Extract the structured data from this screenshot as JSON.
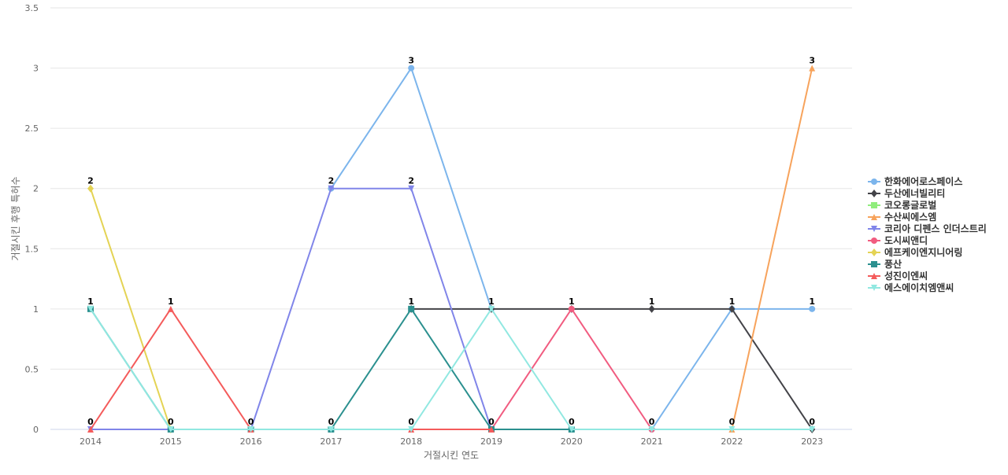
{
  "chart_data": {
    "type": "line",
    "title": "",
    "xlabel": "거절시킨 연도",
    "ylabel": "거절시킨 후행 특허수",
    "x": [
      "2014",
      "2015",
      "2016",
      "2017",
      "2018",
      "2019",
      "2020",
      "2021",
      "2022",
      "2023"
    ],
    "ylim": [
      0,
      3.5
    ],
    "yticks": [
      "0",
      "0.5",
      "1",
      "1.5",
      "2",
      "2.5",
      "3",
      "3.5"
    ],
    "grid": true,
    "legend_position": "right",
    "series": [
      {
        "name": "한화에어로스페이스",
        "color": "#7cb5ec",
        "marker": "circle",
        "values": [
          null,
          null,
          null,
          2,
          3,
          1,
          null,
          0,
          1,
          1
        ]
      },
      {
        "name": "두산에너빌리티",
        "color": "#434348",
        "marker": "diamond",
        "values": [
          null,
          null,
          null,
          null,
          1,
          1,
          1,
          1,
          1,
          0
        ]
      },
      {
        "name": "코오롱글로벌",
        "color": "#90ed7d",
        "marker": "square",
        "values": [
          null,
          null,
          null,
          null,
          null,
          null,
          null,
          null,
          null,
          null
        ]
      },
      {
        "name": "수산씨에스엠",
        "color": "#f7a35c",
        "marker": "triangle",
        "values": [
          null,
          null,
          null,
          null,
          null,
          null,
          null,
          null,
          0,
          3
        ]
      },
      {
        "name": "코리아 디펜스 인더스트리",
        "color": "#8085e9",
        "marker": "triangle-down",
        "values": [
          0,
          0,
          0,
          2,
          2,
          0,
          null,
          null,
          null,
          null
        ]
      },
      {
        "name": "도시씨앤디",
        "color": "#f15c80",
        "marker": "circle",
        "values": [
          null,
          null,
          null,
          null,
          null,
          0,
          1,
          0,
          null,
          null
        ]
      },
      {
        "name": "에프케이엔지니어링",
        "color": "#e4d354",
        "marker": "diamond",
        "values": [
          2,
          0,
          null,
          null,
          null,
          null,
          null,
          null,
          null,
          null
        ]
      },
      {
        "name": "풍산",
        "color": "#2b908f",
        "marker": "square",
        "values": [
          1,
          0,
          0,
          0,
          1,
          0,
          0,
          null,
          null,
          null
        ]
      },
      {
        "name": "성진이엔씨",
        "color": "#f45b5b",
        "marker": "triangle",
        "values": [
          0,
          1,
          0,
          null,
          0,
          0,
          null,
          null,
          null,
          null
        ]
      },
      {
        "name": "에스에이치엠앤씨",
        "color": "#91e8e1",
        "marker": "triangle-down",
        "values": [
          1,
          0,
          0,
          0,
          0,
          1,
          0,
          0,
          0,
          0
        ]
      }
    ],
    "data_labels": [
      {
        "x": "2014",
        "value": "2"
      },
      {
        "x": "2014",
        "value": "1"
      },
      {
        "x": "2014",
        "value": "0"
      },
      {
        "x": "2015",
        "value": "1"
      },
      {
        "x": "2015",
        "value": "0"
      },
      {
        "x": "2016",
        "value": "0"
      },
      {
        "x": "2017",
        "value": "2"
      },
      {
        "x": "2017",
        "value": "0"
      },
      {
        "x": "2018",
        "value": "3"
      },
      {
        "x": "2018",
        "value": "2"
      },
      {
        "x": "2018",
        "value": "1"
      },
      {
        "x": "2018",
        "value": "0"
      },
      {
        "x": "2019",
        "value": "1"
      },
      {
        "x": "2019",
        "value": "0"
      },
      {
        "x": "2020",
        "value": "1"
      },
      {
        "x": "2020",
        "value": "0"
      },
      {
        "x": "2021",
        "value": "1"
      },
      {
        "x": "2021",
        "value": "0"
      },
      {
        "x": "2022",
        "value": "1"
      },
      {
        "x": "2022",
        "value": "0"
      },
      {
        "x": "2023",
        "value": "3"
      },
      {
        "x": "2023",
        "value": "1"
      },
      {
        "x": "2023",
        "value": "0"
      }
    ]
  }
}
